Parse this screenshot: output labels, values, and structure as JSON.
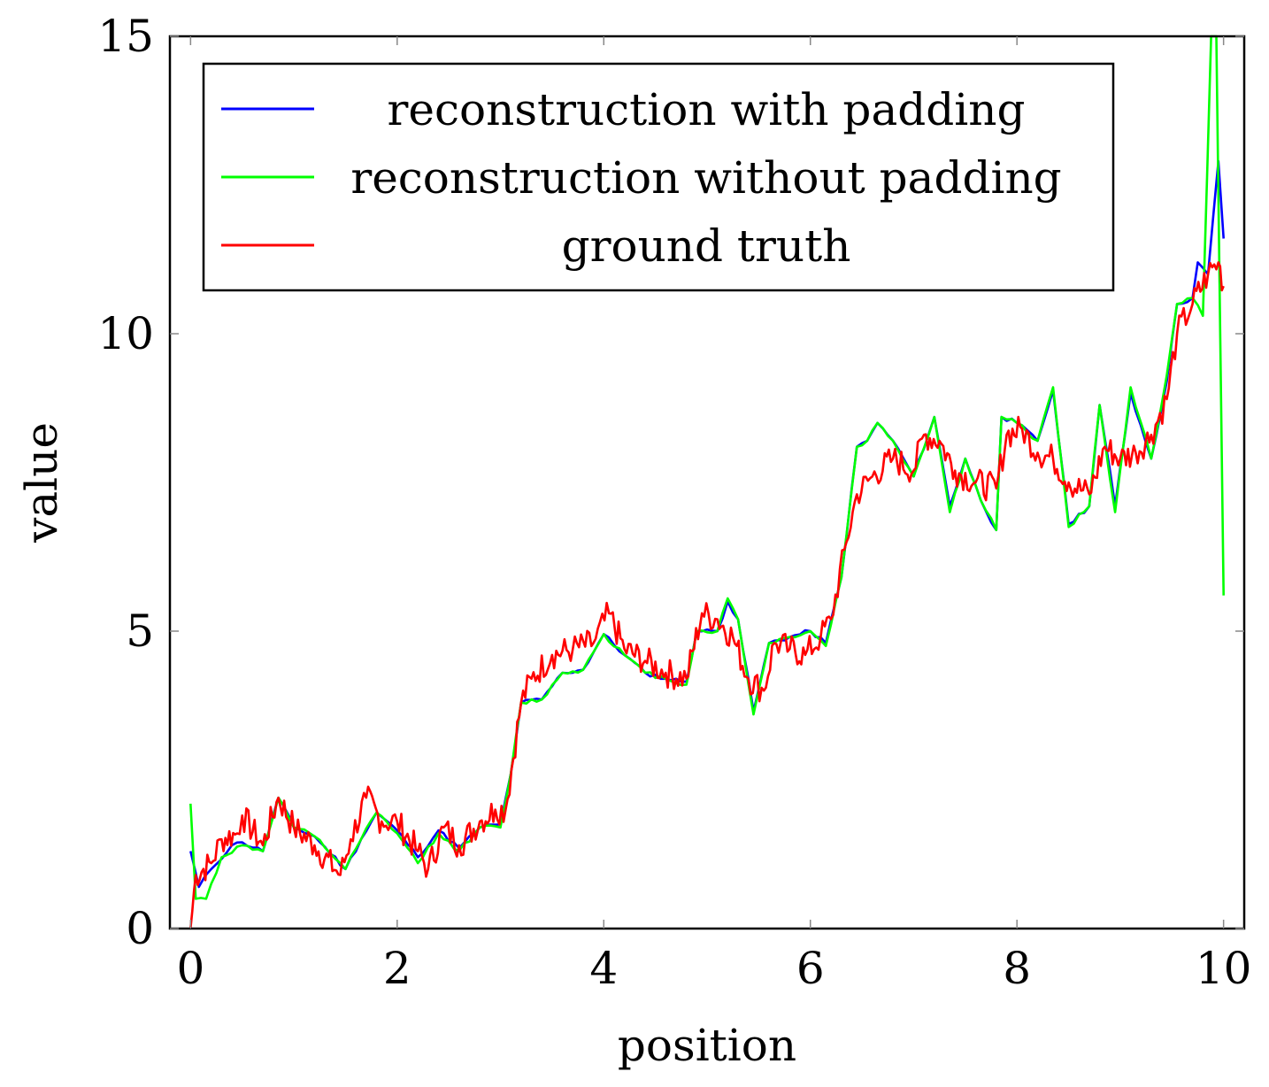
{
  "chart_data": {
    "type": "line",
    "xlabel": "position",
    "ylabel": "value",
    "xlim": [
      -0.2,
      10.2
    ],
    "ylim": [
      0,
      15
    ],
    "xticks": [
      0,
      2,
      4,
      6,
      8,
      10
    ],
    "yticks": [
      0,
      5,
      10,
      15
    ],
    "xtick_labels": [
      "0",
      "2",
      "4",
      "6",
      "8",
      "10"
    ],
    "ytick_labels": [
      "0",
      "5",
      "10",
      "15"
    ],
    "grid": false,
    "legend_position": "top-left",
    "series": [
      {
        "name": "reconstruction with padding",
        "color": "#0000ff",
        "points": [
          [
            0.0,
            1.3
          ],
          [
            0.08,
            0.7
          ],
          [
            0.2,
            1.0
          ],
          [
            0.4,
            1.4
          ],
          [
            0.5,
            1.45
          ],
          [
            0.7,
            1.3
          ],
          [
            0.85,
            2.2
          ],
          [
            1.0,
            1.7
          ],
          [
            1.2,
            1.55
          ],
          [
            1.5,
            1.0
          ],
          [
            1.65,
            1.5
          ],
          [
            1.8,
            1.95
          ],
          [
            2.0,
            1.65
          ],
          [
            2.2,
            1.2
          ],
          [
            2.4,
            1.65
          ],
          [
            2.6,
            1.35
          ],
          [
            2.8,
            1.7
          ],
          [
            3.0,
            1.75
          ],
          [
            3.1,
            2.6
          ],
          [
            3.2,
            3.8
          ],
          [
            3.4,
            3.85
          ],
          [
            3.6,
            4.3
          ],
          [
            3.8,
            4.35
          ],
          [
            4.0,
            4.95
          ],
          [
            4.2,
            4.6
          ],
          [
            4.4,
            4.3
          ],
          [
            4.6,
            4.2
          ],
          [
            4.8,
            4.15
          ],
          [
            4.9,
            5.0
          ],
          [
            5.1,
            5.0
          ],
          [
            5.2,
            5.5
          ],
          [
            5.3,
            5.2
          ],
          [
            5.45,
            3.65
          ],
          [
            5.6,
            4.8
          ],
          [
            5.8,
            4.9
          ],
          [
            6.0,
            5.0
          ],
          [
            6.15,
            4.8
          ],
          [
            6.3,
            5.9
          ],
          [
            6.45,
            8.1
          ],
          [
            6.55,
            8.2
          ],
          [
            6.65,
            8.5
          ],
          [
            6.8,
            8.2
          ],
          [
            7.0,
            7.6
          ],
          [
            7.2,
            8.6
          ],
          [
            7.35,
            7.1
          ],
          [
            7.5,
            7.9
          ],
          [
            7.65,
            7.2
          ],
          [
            7.8,
            6.7
          ],
          [
            7.85,
            8.6
          ],
          [
            8.0,
            8.5
          ],
          [
            8.2,
            8.2
          ],
          [
            8.35,
            9.05
          ],
          [
            8.5,
            6.8
          ],
          [
            8.7,
            7.1
          ],
          [
            8.8,
            8.8
          ],
          [
            8.95,
            7.1
          ],
          [
            9.1,
            9.0
          ],
          [
            9.3,
            7.9
          ],
          [
            9.45,
            9.2
          ],
          [
            9.55,
            10.5
          ],
          [
            9.7,
            10.6
          ],
          [
            9.75,
            11.2
          ],
          [
            9.85,
            11.0
          ],
          [
            9.95,
            12.9
          ],
          [
            10.0,
            11.6
          ]
        ]
      },
      {
        "name": "reconstruction without padding",
        "color": "#00ff00",
        "points": [
          [
            0.0,
            2.1
          ],
          [
            0.05,
            0.5
          ],
          [
            0.15,
            0.5
          ],
          [
            0.3,
            1.2
          ],
          [
            0.5,
            1.4
          ],
          [
            0.7,
            1.3
          ],
          [
            0.85,
            2.2
          ],
          [
            1.0,
            1.7
          ],
          [
            1.2,
            1.55
          ],
          [
            1.5,
            1.0
          ],
          [
            1.65,
            1.5
          ],
          [
            1.8,
            1.95
          ],
          [
            2.0,
            1.6
          ],
          [
            2.2,
            1.1
          ],
          [
            2.4,
            1.6
          ],
          [
            2.6,
            1.3
          ],
          [
            2.8,
            1.7
          ],
          [
            3.0,
            1.7
          ],
          [
            3.1,
            2.6
          ],
          [
            3.2,
            3.8
          ],
          [
            3.4,
            3.85
          ],
          [
            3.6,
            4.3
          ],
          [
            3.8,
            4.35
          ],
          [
            4.0,
            4.95
          ],
          [
            4.2,
            4.6
          ],
          [
            4.4,
            4.3
          ],
          [
            4.6,
            4.2
          ],
          [
            4.8,
            4.1
          ],
          [
            4.9,
            5.0
          ],
          [
            5.1,
            5.0
          ],
          [
            5.2,
            5.55
          ],
          [
            5.3,
            5.2
          ],
          [
            5.45,
            3.6
          ],
          [
            5.6,
            4.8
          ],
          [
            5.8,
            4.9
          ],
          [
            6.0,
            5.0
          ],
          [
            6.15,
            4.75
          ],
          [
            6.3,
            5.9
          ],
          [
            6.45,
            8.1
          ],
          [
            6.55,
            8.2
          ],
          [
            6.65,
            8.5
          ],
          [
            6.8,
            8.2
          ],
          [
            7.0,
            7.6
          ],
          [
            7.2,
            8.6
          ],
          [
            7.35,
            7.0
          ],
          [
            7.5,
            7.9
          ],
          [
            7.65,
            7.2
          ],
          [
            7.8,
            6.7
          ],
          [
            7.85,
            8.6
          ],
          [
            8.0,
            8.5
          ],
          [
            8.2,
            8.2
          ],
          [
            8.35,
            9.1
          ],
          [
            8.5,
            6.75
          ],
          [
            8.7,
            7.1
          ],
          [
            8.8,
            8.8
          ],
          [
            8.95,
            7.0
          ],
          [
            9.1,
            9.1
          ],
          [
            9.3,
            7.9
          ],
          [
            9.45,
            9.3
          ],
          [
            9.55,
            10.5
          ],
          [
            9.7,
            10.6
          ],
          [
            9.8,
            10.3
          ],
          [
            9.88,
            15.0
          ],
          [
            9.93,
            15.0
          ],
          [
            10.0,
            5.6
          ]
        ]
      },
      {
        "name": "ground truth",
        "color": "#ff0000",
        "noisy": true,
        "points": [
          [
            0.0,
            0.0
          ],
          [
            0.05,
            0.9
          ],
          [
            0.2,
            1.1
          ],
          [
            0.3,
            1.5
          ],
          [
            0.45,
            1.6
          ],
          [
            0.5,
            1.9
          ],
          [
            0.7,
            1.4
          ],
          [
            0.85,
            2.2
          ],
          [
            1.0,
            1.7
          ],
          [
            1.2,
            1.4
          ],
          [
            1.45,
            0.9
          ],
          [
            1.55,
            1.5
          ],
          [
            1.7,
            2.2
          ],
          [
            1.85,
            1.8
          ],
          [
            2.0,
            1.8
          ],
          [
            2.2,
            1.3
          ],
          [
            2.3,
            1.0
          ],
          [
            2.45,
            1.7
          ],
          [
            2.6,
            1.4
          ],
          [
            2.8,
            1.8
          ],
          [
            2.95,
            2.0
          ],
          [
            3.05,
            2.0
          ],
          [
            3.2,
            3.8
          ],
          [
            3.3,
            4.2
          ],
          [
            3.5,
            4.6
          ],
          [
            3.7,
            4.7
          ],
          [
            3.9,
            4.8
          ],
          [
            4.05,
            5.3
          ],
          [
            4.2,
            4.7
          ],
          [
            4.4,
            4.5
          ],
          [
            4.6,
            4.3
          ],
          [
            4.8,
            4.2
          ],
          [
            4.95,
            5.3
          ],
          [
            5.1,
            5.2
          ],
          [
            5.25,
            4.9
          ],
          [
            5.4,
            4.2
          ],
          [
            5.55,
            4.0
          ],
          [
            5.65,
            4.8
          ],
          [
            5.8,
            4.7
          ],
          [
            5.95,
            4.6
          ],
          [
            6.1,
            4.9
          ],
          [
            6.2,
            5.2
          ],
          [
            6.35,
            6.5
          ],
          [
            6.45,
            7.3
          ],
          [
            6.6,
            7.6
          ],
          [
            6.8,
            7.9
          ],
          [
            7.0,
            7.7
          ],
          [
            7.1,
            8.3
          ],
          [
            7.25,
            8.2
          ],
          [
            7.4,
            7.7
          ],
          [
            7.6,
            7.5
          ],
          [
            7.8,
            7.4
          ],
          [
            7.9,
            8.3
          ],
          [
            8.05,
            8.4
          ],
          [
            8.2,
            8.0
          ],
          [
            8.35,
            7.9
          ],
          [
            8.5,
            7.5
          ],
          [
            8.7,
            7.3
          ],
          [
            8.85,
            8.1
          ],
          [
            9.0,
            7.9
          ],
          [
            9.15,
            8.0
          ],
          [
            9.3,
            8.3
          ],
          [
            9.45,
            8.9
          ],
          [
            9.55,
            10.0
          ],
          [
            9.7,
            10.5
          ],
          [
            9.85,
            11.0
          ],
          [
            9.95,
            11.2
          ],
          [
            10.0,
            10.8
          ]
        ]
      }
    ]
  }
}
